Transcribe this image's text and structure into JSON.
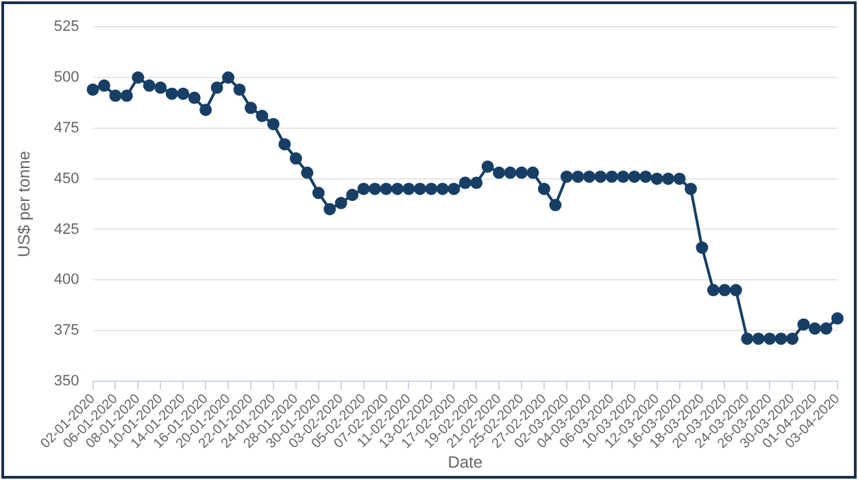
{
  "chart_data": {
    "type": "line",
    "xlabel": "Date",
    "ylabel": "US$ per tonne",
    "categories": [
      "02-01-2020",
      null,
      "06-01-2020",
      null,
      "08-01-2020",
      null,
      "10-01-2020",
      null,
      "14-01-2020",
      null,
      "16-01-2020",
      null,
      "20-01-2020",
      null,
      "22-01-2020",
      null,
      "24-01-2020",
      null,
      "28-01-2020",
      null,
      "30-01-2020",
      null,
      "03-02-2020",
      null,
      "05-02-2020",
      null,
      "07-02-2020",
      null,
      "11-02-2020",
      null,
      "13-02-2020",
      null,
      "17-02-2020",
      null,
      "19-02-2020",
      null,
      "21-02-2020",
      null,
      "25-02-2020",
      null,
      "27-02-2020",
      null,
      "02-03-2020",
      null,
      "04-03-2020",
      null,
      "06-03-2020",
      null,
      "10-03-2020",
      null,
      "12-03-2020",
      null,
      "16-03-2020",
      null,
      "18-03-2020",
      null,
      "20-03-2020",
      null,
      "24-03-2020",
      null,
      "26-03-2020",
      null,
      "30-03-2020",
      null,
      "01-04-2020",
      null,
      "03-04-2020"
    ],
    "series": [
      {
        "color": "#173f66",
        "values": [
          494,
          496,
          491,
          491,
          500,
          496,
          495,
          492,
          492,
          490,
          484,
          495,
          500,
          494,
          485,
          481,
          477,
          467,
          460,
          453,
          443,
          435,
          438,
          442,
          445,
          445,
          445,
          445,
          445,
          445,
          445,
          445,
          445,
          448,
          448,
          456,
          453,
          453,
          453,
          453,
          445,
          437,
          451,
          451,
          451,
          451,
          451,
          451,
          451,
          451,
          450,
          450,
          450,
          445,
          416,
          395,
          395,
          395,
          371,
          371,
          371,
          371,
          371,
          378,
          376,
          376,
          381
        ]
      }
    ],
    "ylim": [
      350,
      525
    ],
    "yticks": [
      350,
      375,
      400,
      425,
      450,
      475,
      500,
      525
    ],
    "grid": "y",
    "legend": false,
    "marker": "circle",
    "line_style": "solid"
  }
}
